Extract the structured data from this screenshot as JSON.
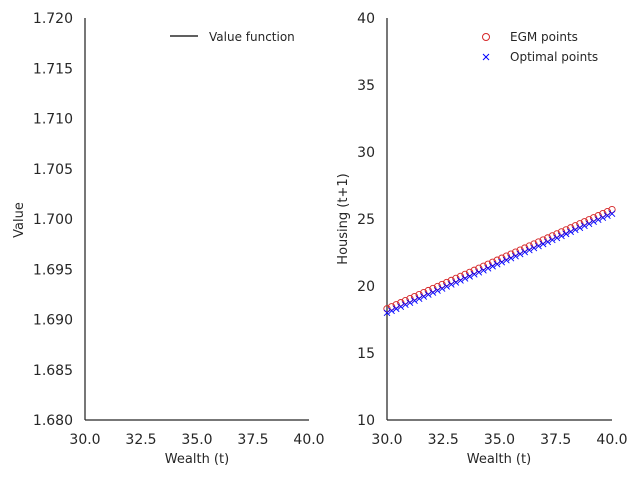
{
  "chart_data": [
    {
      "type": "line",
      "xlabel": "Wealth (t)",
      "ylabel": "Value",
      "xlim": [
        30.0,
        40.0
      ],
      "ylim": [
        1.68,
        1.72
      ],
      "xticks": [
        "30.0",
        "32.5",
        "35.0",
        "37.5",
        "40.0"
      ],
      "yticks": [
        "1.680",
        "1.685",
        "1.690",
        "1.695",
        "1.700",
        "1.705",
        "1.710",
        "1.715",
        "1.720"
      ],
      "legend_placement": "top-right",
      "grid": false,
      "series": [
        {
          "name": "Value function",
          "color": "#000000",
          "x": [],
          "y": []
        }
      ]
    },
    {
      "type": "scatter",
      "xlabel": "Wealth (t)",
      "ylabel": "Housing (t+1)",
      "xlim": [
        30.0,
        40.0
      ],
      "ylim": [
        10,
        40
      ],
      "xticks": [
        "30.0",
        "32.5",
        "35.0",
        "37.5",
        "40.0"
      ],
      "yticks": [
        "10",
        "15",
        "20",
        "25",
        "30",
        "35",
        "40"
      ],
      "legend_placement": "top-right",
      "grid": false,
      "x_range": [
        30.0,
        40.0
      ],
      "n_points": 50,
      "series": [
        {
          "name": "EGM points",
          "marker": "circle",
          "color": "#d62728",
          "y_start": 18.3,
          "y_end": 25.7
        },
        {
          "name": "Optimal points",
          "marker": "x",
          "color": "#0000ff",
          "y_start": 18.0,
          "y_end": 25.4
        }
      ]
    }
  ]
}
